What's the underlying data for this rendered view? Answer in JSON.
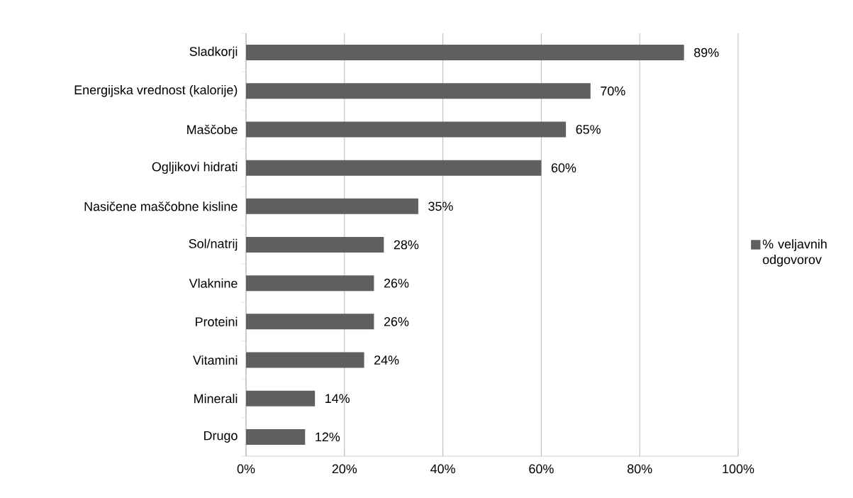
{
  "chart_data": {
    "type": "bar",
    "orientation": "horizontal",
    "categories": [
      "Sladkorji",
      "Energijska vrednost (kalorije)",
      "Maščobe",
      "Ogljikovi hidrati",
      "Nasičene maščobne kisline",
      "Sol/natrij",
      "Vlaknine",
      "Proteini",
      "Vitamini",
      "Minerali",
      "Drugo"
    ],
    "series": [
      {
        "name": "% veljavnih odgovorov",
        "color": "#5f5f5f",
        "values": [
          89,
          70,
          65,
          60,
          35,
          28,
          26,
          26,
          24,
          14,
          12
        ],
        "value_labels": [
          "89%",
          "70%",
          "65%",
          "60%",
          "35%",
          "28%",
          "26%",
          "26%",
          "24%",
          "14%",
          "12%"
        ]
      }
    ],
    "xlim": [
      0,
      100
    ],
    "xticks": [
      {
        "value": 0,
        "label": "0%"
      },
      {
        "value": 20,
        "label": "20%"
      },
      {
        "value": 40,
        "label": "40%"
      },
      {
        "value": 60,
        "label": "60%"
      },
      {
        "value": 80,
        "label": "80%"
      },
      {
        "value": 100,
        "label": "100%"
      }
    ],
    "grid": "x",
    "legend": "right"
  }
}
